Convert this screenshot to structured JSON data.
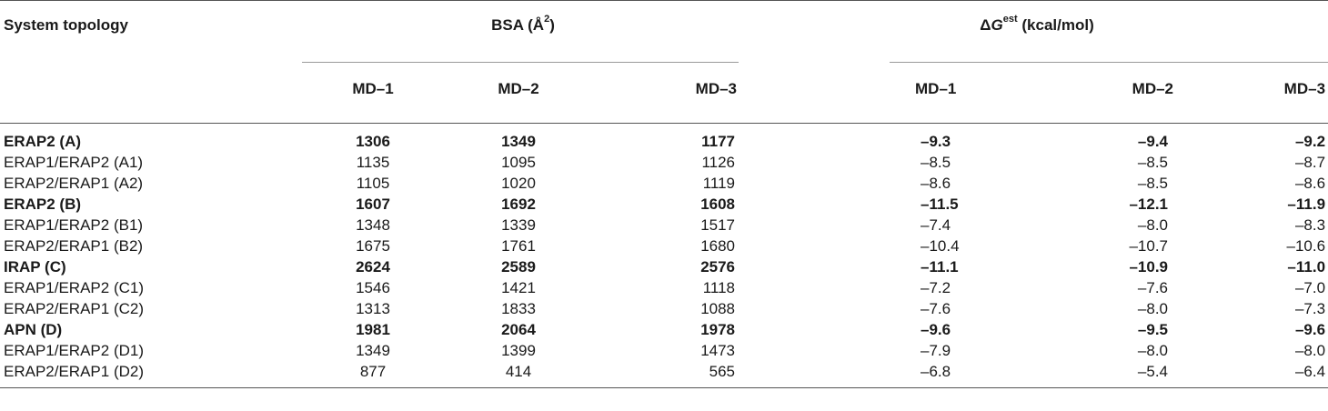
{
  "table": {
    "header": {
      "row_label": "System topology",
      "group1": {
        "label": "BSA (Å",
        "sup": "2",
        "close": ")"
      },
      "group2": {
        "prefix": "ΔG",
        "sup": "est",
        "suffix": " (kcal/mol)"
      },
      "sub": [
        "MD–1",
        "MD–2",
        "MD–3",
        "MD–1",
        "MD–2",
        "MD–3"
      ]
    },
    "rows": [
      {
        "label": "ERAP2 (A)",
        "bold": true,
        "bsa": [
          "1306",
          "1349",
          "1177"
        ],
        "dg": [
          "–9.3",
          "–9.4",
          "–9.2"
        ]
      },
      {
        "label": "ERAP1/ERAP2 (A1)",
        "bold": false,
        "bsa": [
          "1135",
          "1095",
          "1126"
        ],
        "dg": [
          "–8.5",
          "–8.5",
          "–8.7"
        ]
      },
      {
        "label": "ERAP2/ERAP1 (A2)",
        "bold": false,
        "bsa": [
          "1105",
          "1020",
          "1119"
        ],
        "dg": [
          "–8.6",
          "–8.5",
          "–8.6"
        ]
      },
      {
        "label": "ERAP2 (B)",
        "bold": true,
        "bsa": [
          "1607",
          "1692",
          "1608"
        ],
        "dg": [
          "–11.5",
          "–12.1",
          "–11.9"
        ]
      },
      {
        "label": "ERAP1/ERAP2 (B1)",
        "bold": false,
        "bsa": [
          "1348",
          "1339",
          "1517"
        ],
        "dg": [
          "–7.4",
          "–8.0",
          "–8.3"
        ]
      },
      {
        "label": "ERAP2/ERAP1 (B2)",
        "bold": false,
        "bsa": [
          "1675",
          "1761",
          "1680"
        ],
        "dg": [
          "–10.4",
          "–10.7",
          "–10.6"
        ]
      },
      {
        "label": "IRAP (C)",
        "bold": true,
        "bsa": [
          "2624",
          "2589",
          "2576"
        ],
        "dg": [
          "–11.1",
          "–10.9",
          "–11.0"
        ]
      },
      {
        "label": "ERAP1/ERAP2 (C1)",
        "bold": false,
        "bsa": [
          "1546",
          "1421",
          "1118"
        ],
        "dg": [
          "–7.2",
          "–7.6",
          "–7.0"
        ]
      },
      {
        "label": "ERAP2/ERAP1 (C2)",
        "bold": false,
        "bsa": [
          "1313",
          "1833",
          "1088"
        ],
        "dg": [
          "–7.6",
          "–8.0",
          "–7.3"
        ]
      },
      {
        "label": "APN (D)",
        "bold": true,
        "bsa": [
          "1981",
          "2064",
          "1978"
        ],
        "dg": [
          "–9.6",
          "–9.5",
          "–9.6"
        ]
      },
      {
        "label": "ERAP1/ERAP2 (D1)",
        "bold": false,
        "bsa": [
          "1349",
          "1399",
          "1473"
        ],
        "dg": [
          "–7.9",
          "–8.0",
          "–8.0"
        ]
      },
      {
        "label": "ERAP2/ERAP1 (D2)",
        "bold": false,
        "bsa": [
          "877",
          "414",
          "565"
        ],
        "dg": [
          "–6.8",
          "–5.4",
          "–6.4"
        ]
      }
    ]
  }
}
